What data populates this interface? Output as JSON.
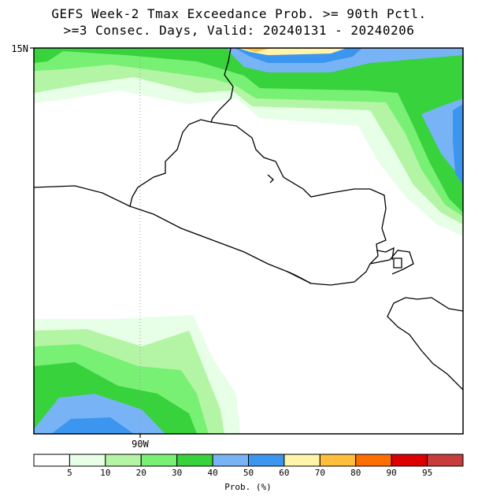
{
  "title": {
    "line1": "GEFS Week-2 Tmax Exceedance Prob. >= 90th Pctl.",
    "line2": ">=3 Consec. Days, Valid: 20240131 - 20240206"
  },
  "axes": {
    "lat_label": "15N",
    "lon_label": "90W"
  },
  "colorbar": {
    "title": "Prob. (%)",
    "labels": [
      "5",
      "10",
      "20",
      "30",
      "40",
      "50",
      "60",
      "70",
      "80",
      "90",
      "95"
    ],
    "colors": [
      "#ffffff",
      "#e6ffe6",
      "#b4f5a5",
      "#78f073",
      "#37d23c",
      "#78b4f5",
      "#3c96f0",
      "#fff5aa",
      "#ffbe3c",
      "#ff6e00",
      "#dc0000",
      "#c83c3c"
    ]
  },
  "colors": {
    "land_line": "#000000",
    "frame": "#000000"
  }
}
